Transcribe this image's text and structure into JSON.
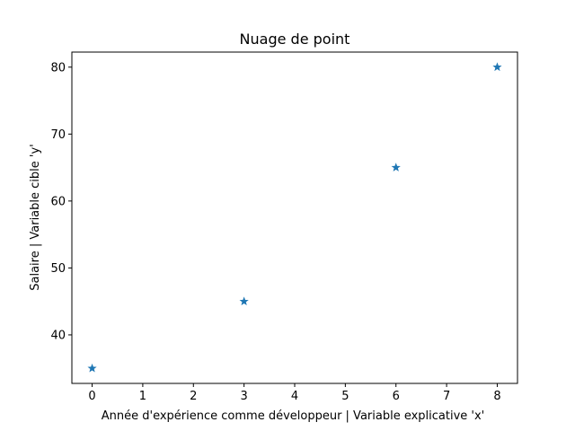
{
  "chart_data": {
    "type": "scatter",
    "title": "Nuage de point",
    "xlabel": "Année d'expérience comme développeur | Variable explicative 'x'",
    "ylabel": "Salaire | Variable cible 'y'",
    "x": [
      0,
      3,
      6,
      8
    ],
    "y": [
      35,
      45,
      65,
      80
    ],
    "marker": "star",
    "color": "#1f77b4",
    "xlim": [
      -0.4,
      8.4
    ],
    "ylim": [
      32.75,
      82.25
    ],
    "xticks": [
      "0",
      "1",
      "2",
      "3",
      "4",
      "5",
      "6",
      "7",
      "8"
    ],
    "yticks": [
      "40",
      "50",
      "60",
      "70",
      "80"
    ],
    "grid": false
  }
}
